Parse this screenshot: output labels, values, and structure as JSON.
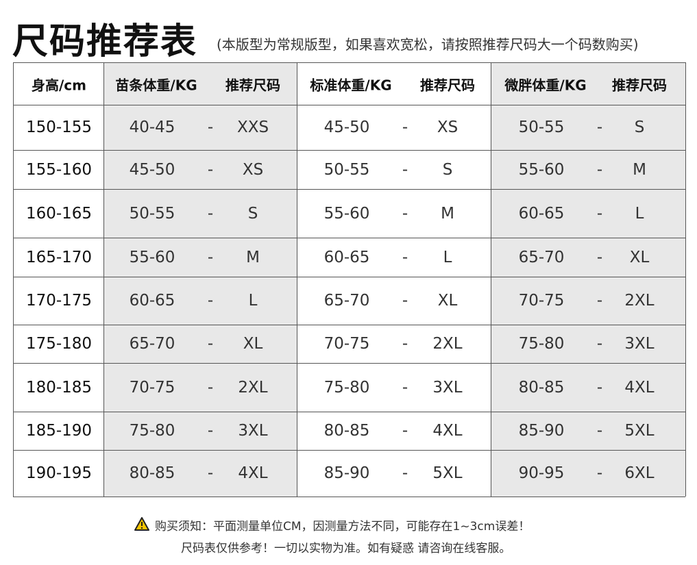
{
  "header": {
    "title": "尺码推荐表",
    "subtitle": "(本版型为常规版型，如果喜欢宽松，请按照推荐尺码大一个码数购买)"
  },
  "table": {
    "headers": [
      "身高/cm",
      "苗条体重/KG",
      "推荐尺码",
      "标准体重/KG",
      "推荐尺码",
      "微胖体重/KG",
      "推荐尺码"
    ],
    "rows": [
      [
        "150-155",
        "40-45",
        "-",
        "XXS",
        "45-50",
        "-",
        "XS",
        "50-55",
        "-",
        "S"
      ],
      [
        "155-160",
        "45-50",
        "-",
        "XS",
        "50-55",
        "-",
        "S",
        "55-60",
        "-",
        "M"
      ],
      [
        "160-165",
        "50-55",
        "-",
        "S",
        "55-60",
        "-",
        "M",
        "60-65",
        "-",
        "L"
      ],
      [
        "165-170",
        "55-60",
        "-",
        "M",
        "60-65",
        "-",
        "L",
        "65-70",
        "-",
        "XL"
      ],
      [
        "170-175",
        "60-65",
        "-",
        "L",
        "65-70",
        "-",
        "XL",
        "70-75",
        "-",
        "2XL"
      ],
      [
        "175-180",
        "65-70",
        "-",
        "XL",
        "70-75",
        "-",
        "2XL",
        "75-80",
        "-",
        "3XL"
      ],
      [
        "180-185",
        "70-75",
        "-",
        "2XL",
        "75-80",
        "-",
        "3XL",
        "80-85",
        "-",
        "4XL"
      ],
      [
        "185-190",
        "75-80",
        "-",
        "3XL",
        "80-85",
        "-",
        "4XL",
        "85-90",
        "-",
        "5XL"
      ],
      [
        "190-195",
        "80-85",
        "-",
        "4XL",
        "85-90",
        "-",
        "5XL",
        "90-95",
        "-",
        "6XL"
      ]
    ]
  },
  "footer": {
    "notice": "购买须知：平面测量单位CM，因测量方法不同，可能存在1~3cm误差！",
    "note": "尺码表仅供参考！一切以实物为准。如有疑惑 请咨询在线客服。"
  }
}
